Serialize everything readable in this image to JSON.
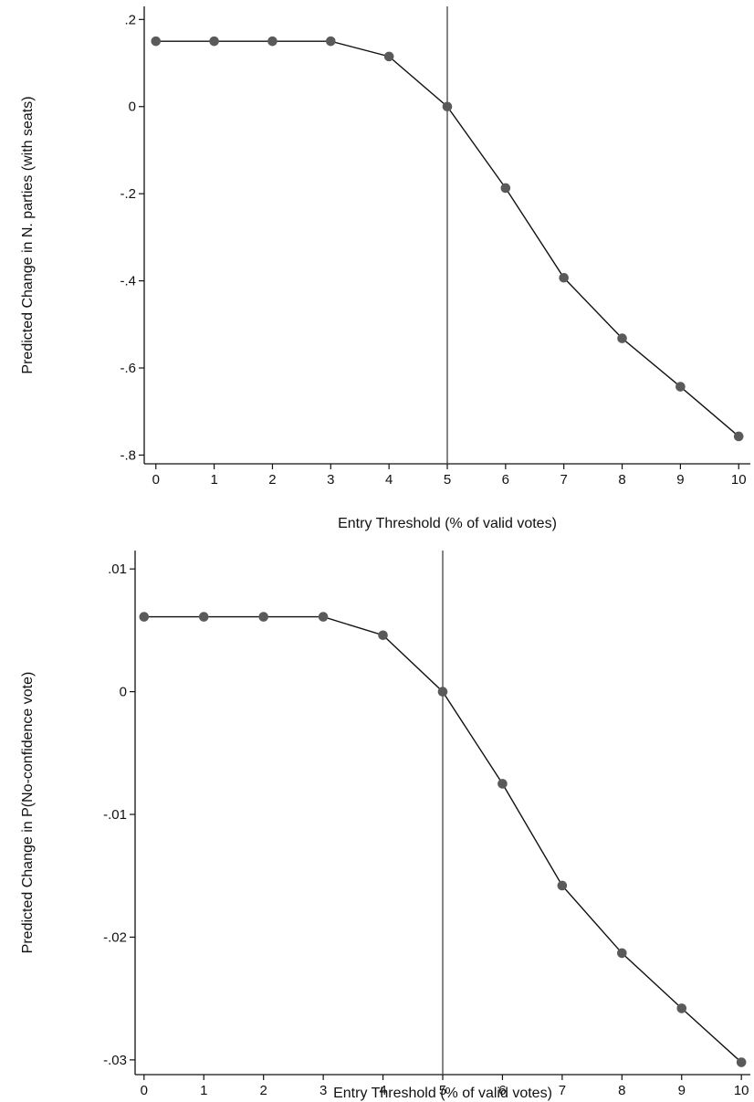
{
  "chart_data": [
    {
      "type": "line",
      "title": "",
      "xlabel": "Entry Threshold (% of valid votes)",
      "ylabel": "Predicted Change in N. parties (with seats)",
      "x": [
        0,
        1,
        2,
        3,
        4,
        5,
        6,
        7,
        8,
        9,
        10
      ],
      "series": [
        {
          "values": [
            0.15,
            0.15,
            0.15,
            0.15,
            0.115,
            0.0,
            -0.187,
            -0.393,
            -0.532,
            -0.643,
            -0.757
          ]
        }
      ],
      "xlim": [
        -0.2,
        10.2
      ],
      "ylim": [
        -0.82,
        0.23
      ],
      "xticks": [
        0,
        1,
        2,
        3,
        4,
        5,
        6,
        7,
        8,
        9,
        10
      ],
      "xtick_labels": [
        "0",
        "1",
        "2",
        "3",
        "4",
        "5",
        "6",
        "7",
        "8",
        "9",
        "10"
      ],
      "yticks": [
        0.2,
        0,
        -0.2,
        -0.4,
        -0.6,
        -0.8
      ],
      "ytick_labels": [
        ".2",
        "0",
        "-.2",
        "-.4",
        "-.6",
        "-.8"
      ],
      "reference_line_x": 5,
      "grid": false,
      "legend": "none"
    },
    {
      "type": "line",
      "title": "",
      "xlabel": "Entry Threshold (% of valid votes)",
      "ylabel": "Predicted Change in P(No-confidence vote)",
      "x": [
        0,
        1,
        2,
        3,
        4,
        5,
        6,
        7,
        8,
        9,
        10
      ],
      "series": [
        {
          "values": [
            0.0061,
            0.0061,
            0.0061,
            0.0061,
            0.0046,
            0.0,
            -0.0075,
            -0.0158,
            -0.0213,
            -0.0258,
            -0.0302
          ]
        }
      ],
      "xlim": [
        -0.15,
        10.15
      ],
      "ylim": [
        -0.0312,
        0.0115
      ],
      "xticks": [
        0,
        1,
        2,
        3,
        4,
        5,
        6,
        7,
        8,
        9,
        10
      ],
      "xtick_labels": [
        "0",
        "1",
        "2",
        "3",
        "4",
        "5",
        "6",
        "7",
        "8",
        "9",
        "10"
      ],
      "yticks": [
        0.01,
        0,
        -0.01,
        -0.02,
        -0.03
      ],
      "ytick_labels": [
        ".01",
        "0",
        "-.01",
        "-.02",
        "-.03"
      ],
      "reference_line_x": 5,
      "grid": false,
      "legend": "none"
    }
  ],
  "colors": {
    "line": "#111111",
    "marker": "#5a5a5a",
    "reference_line": "#444444",
    "axis": "#111111"
  }
}
